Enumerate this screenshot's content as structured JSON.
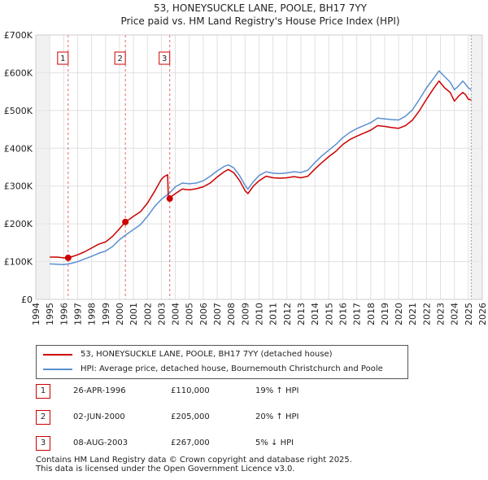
{
  "chart_data": {
    "type": "line",
    "title": "53, HONEYSUCKLE LANE, POOLE, BH17 7YY",
    "subtitle": "Price paid vs. HM Land Registry's House Price Index (HPI)",
    "x_range": [
      1994,
      2026
    ],
    "y_range": [
      0,
      700000
    ],
    "x_ticks": [
      "1994",
      "1995",
      "1996",
      "1997",
      "1998",
      "1999",
      "2000",
      "2001",
      "2002",
      "2003",
      "2004",
      "2005",
      "2006",
      "2007",
      "2008",
      "2009",
      "2010",
      "2011",
      "2012",
      "2013",
      "2014",
      "2015",
      "2016",
      "2017",
      "2018",
      "2019",
      "2020",
      "2021",
      "2022",
      "2023",
      "2024",
      "2025",
      "2026"
    ],
    "y_ticks": [
      {
        "value": 0,
        "label": "£0"
      },
      {
        "value": 100000,
        "label": "£100K"
      },
      {
        "value": 200000,
        "label": "£200K"
      },
      {
        "value": 300000,
        "label": "£300K"
      },
      {
        "value": 400000,
        "label": "£400K"
      },
      {
        "value": 500000,
        "label": "£500K"
      },
      {
        "value": 600000,
        "label": "£600K"
      },
      {
        "value": 700000,
        "label": "£700K"
      }
    ],
    "data_start": 1995.0,
    "data_end": 2025.2,
    "series": [
      {
        "name": "53, HONEYSUCKLE LANE, POOLE, BH17 7YY (detached house)",
        "color": "#cc0000",
        "points": [
          [
            1995.0,
            112000
          ],
          [
            1995.5,
            112000
          ],
          [
            1996.0,
            110000
          ],
          [
            1996.32,
            110000
          ],
          [
            1996.5,
            112000
          ],
          [
            1997.0,
            118000
          ],
          [
            1997.5,
            126000
          ],
          [
            1998.0,
            136000
          ],
          [
            1998.5,
            146000
          ],
          [
            1999.0,
            152000
          ],
          [
            1999.5,
            167000
          ],
          [
            2000.0,
            187000
          ],
          [
            2000.42,
            205000
          ],
          [
            2000.7,
            212000
          ],
          [
            2001.0,
            220000
          ],
          [
            2001.5,
            232000
          ],
          [
            2002.0,
            255000
          ],
          [
            2002.5,
            285000
          ],
          [
            2003.0,
            318000
          ],
          [
            2003.2,
            325000
          ],
          [
            2003.45,
            330000
          ],
          [
            2003.5,
            267000
          ],
          [
            2004.0,
            280000
          ],
          [
            2004.5,
            292000
          ],
          [
            2005.0,
            290000
          ],
          [
            2005.5,
            293000
          ],
          [
            2006.0,
            298000
          ],
          [
            2006.5,
            308000
          ],
          [
            2007.0,
            324000
          ],
          [
            2007.5,
            338000
          ],
          [
            2007.8,
            344000
          ],
          [
            2008.2,
            335000
          ],
          [
            2008.6,
            315000
          ],
          [
            2009.0,
            288000
          ],
          [
            2009.2,
            280000
          ],
          [
            2009.6,
            300000
          ],
          [
            2010.0,
            314000
          ],
          [
            2010.5,
            326000
          ],
          [
            2011.0,
            322000
          ],
          [
            2011.5,
            321000
          ],
          [
            2012.0,
            322000
          ],
          [
            2012.5,
            325000
          ],
          [
            2013.0,
            322000
          ],
          [
            2013.5,
            326000
          ],
          [
            2014.0,
            345000
          ],
          [
            2014.5,
            362000
          ],
          [
            2015.0,
            378000
          ],
          [
            2015.5,
            392000
          ],
          [
            2016.0,
            410000
          ],
          [
            2016.5,
            423000
          ],
          [
            2017.0,
            432000
          ],
          [
            2017.5,
            440000
          ],
          [
            2018.0,
            448000
          ],
          [
            2018.5,
            460000
          ],
          [
            2019.0,
            458000
          ],
          [
            2019.5,
            455000
          ],
          [
            2020.0,
            453000
          ],
          [
            2020.5,
            460000
          ],
          [
            2021.0,
            475000
          ],
          [
            2021.5,
            500000
          ],
          [
            2022.0,
            530000
          ],
          [
            2022.5,
            558000
          ],
          [
            2022.9,
            578000
          ],
          [
            2023.3,
            560000
          ],
          [
            2023.7,
            548000
          ],
          [
            2024.0,
            525000
          ],
          [
            2024.3,
            538000
          ],
          [
            2024.6,
            548000
          ],
          [
            2024.8,
            542000
          ],
          [
            2025.0,
            530000
          ],
          [
            2025.2,
            528000
          ]
        ]
      },
      {
        "name": "HPI: Average price, detached house, Bournemouth Christchurch and Poole",
        "color": "#5b8fd1",
        "points": [
          [
            1995.0,
            94000
          ],
          [
            1995.5,
            93000
          ],
          [
            1996.0,
            92000
          ],
          [
            1996.5,
            95000
          ],
          [
            1997.0,
            100000
          ],
          [
            1997.5,
            107000
          ],
          [
            1998.0,
            114000
          ],
          [
            1998.5,
            122000
          ],
          [
            1999.0,
            128000
          ],
          [
            1999.5,
            140000
          ],
          [
            2000.0,
            158000
          ],
          [
            2000.5,
            172000
          ],
          [
            2001.0,
            185000
          ],
          [
            2001.5,
            198000
          ],
          [
            2002.0,
            220000
          ],
          [
            2002.5,
            245000
          ],
          [
            2003.0,
            265000
          ],
          [
            2003.6,
            282000
          ],
          [
            2004.0,
            298000
          ],
          [
            2004.5,
            308000
          ],
          [
            2005.0,
            306000
          ],
          [
            2005.5,
            308000
          ],
          [
            2006.0,
            314000
          ],
          [
            2006.5,
            326000
          ],
          [
            2007.0,
            340000
          ],
          [
            2007.5,
            352000
          ],
          [
            2007.8,
            356000
          ],
          [
            2008.2,
            348000
          ],
          [
            2008.6,
            328000
          ],
          [
            2009.0,
            302000
          ],
          [
            2009.2,
            292000
          ],
          [
            2009.6,
            312000
          ],
          [
            2010.0,
            328000
          ],
          [
            2010.5,
            338000
          ],
          [
            2011.0,
            334000
          ],
          [
            2011.5,
            333000
          ],
          [
            2012.0,
            335000
          ],
          [
            2012.5,
            338000
          ],
          [
            2013.0,
            336000
          ],
          [
            2013.5,
            342000
          ],
          [
            2014.0,
            362000
          ],
          [
            2014.5,
            380000
          ],
          [
            2015.0,
            395000
          ],
          [
            2015.5,
            410000
          ],
          [
            2016.0,
            428000
          ],
          [
            2016.5,
            442000
          ],
          [
            2017.0,
            452000
          ],
          [
            2017.5,
            460000
          ],
          [
            2018.0,
            468000
          ],
          [
            2018.5,
            480000
          ],
          [
            2019.0,
            478000
          ],
          [
            2019.5,
            476000
          ],
          [
            2020.0,
            475000
          ],
          [
            2020.5,
            485000
          ],
          [
            2021.0,
            502000
          ],
          [
            2021.5,
            530000
          ],
          [
            2022.0,
            560000
          ],
          [
            2022.5,
            585000
          ],
          [
            2022.9,
            605000
          ],
          [
            2023.3,
            590000
          ],
          [
            2023.7,
            575000
          ],
          [
            2024.0,
            555000
          ],
          [
            2024.3,
            565000
          ],
          [
            2024.6,
            578000
          ],
          [
            2024.8,
            570000
          ],
          [
            2025.0,
            560000
          ],
          [
            2025.2,
            555000
          ]
        ]
      }
    ],
    "markers": [
      {
        "label": "1",
        "x": 1996.32,
        "y": 110000
      },
      {
        "label": "2",
        "x": 2000.42,
        "y": 205000
      },
      {
        "label": "3",
        "x": 2003.6,
        "y": 267000
      }
    ]
  },
  "legend": {
    "items": [
      {
        "label": "53, HONEYSUCKLE LANE, POOLE, BH17 7YY (detached house)",
        "color": "#cc0000"
      },
      {
        "label": "HPI: Average price, detached house, Bournemouth Christchurch and Poole",
        "color": "#5b8fd1"
      }
    ]
  },
  "sales": [
    {
      "num": "1",
      "date": "26-APR-1996",
      "price": "£110,000",
      "hpi": "19% ↑ HPI"
    },
    {
      "num": "2",
      "date": "02-JUN-2000",
      "price": "£205,000",
      "hpi": "20% ↑ HPI"
    },
    {
      "num": "3",
      "date": "08-AUG-2003",
      "price": "£267,000",
      "hpi": "5% ↓ HPI"
    }
  ],
  "footer": {
    "line1": "Contains HM Land Registry data © Crown copyright and database right 2025.",
    "line2": "This data is licensed under the Open Government Licence v3.0."
  },
  "colors": {
    "price": "#cc0000",
    "hpi": "#5b8fd1",
    "grid": "#e0e0e0",
    "background": "#ffffff"
  }
}
